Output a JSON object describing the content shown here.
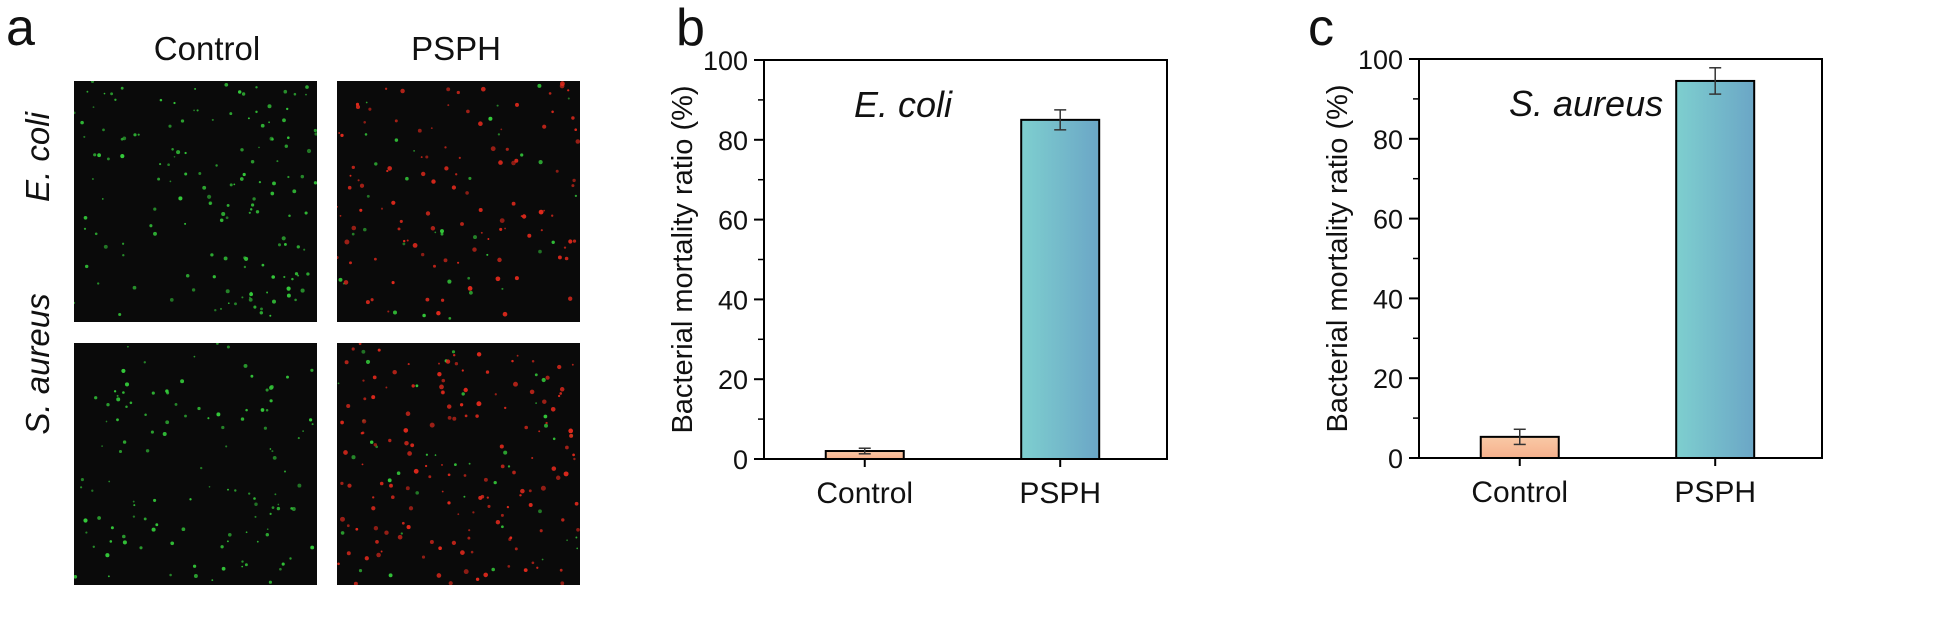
{
  "panels": {
    "a": {
      "letter": "a",
      "columns": [
        "Control",
        "PSPH"
      ],
      "rows": [
        "E. coli",
        "S. aureus"
      ]
    },
    "b": {
      "letter": "b"
    },
    "c": {
      "letter": "c"
    }
  },
  "chart_data": [
    {
      "type": "bar",
      "annotation": "E. coli",
      "categories": [
        "Control",
        "PSPH"
      ],
      "values": [
        2,
        85
      ],
      "errors": [
        0.7,
        2.5
      ],
      "ylabel": "Bacterial mortality ratio (%)",
      "xlabel": "",
      "ylim": [
        0,
        100
      ],
      "yticks": [
        0,
        20,
        40,
        60,
        80,
        100
      ],
      "grid": false
    },
    {
      "type": "bar",
      "annotation": "S. aureus",
      "categories": [
        "Control",
        "PSPH"
      ],
      "values": [
        5.3,
        94.5
      ],
      "errors": [
        1.9,
        3.3
      ],
      "ylabel": "Bacterial mortality ratio (%)",
      "xlabel": "",
      "ylim": [
        0,
        100
      ],
      "yticks": [
        0,
        20,
        40,
        60,
        80,
        100
      ],
      "grid": false
    }
  ],
  "colors": {
    "control_bar_top": "#f9c9a6",
    "control_bar_bottom": "#f6b08c",
    "psph_bar_left": "#7ecfcf",
    "psph_bar_right": "#6ba6c6",
    "live_cells": "#34c93a",
    "dead_cells": "#e0291c",
    "micrograph_background": "#0a0a0a"
  }
}
